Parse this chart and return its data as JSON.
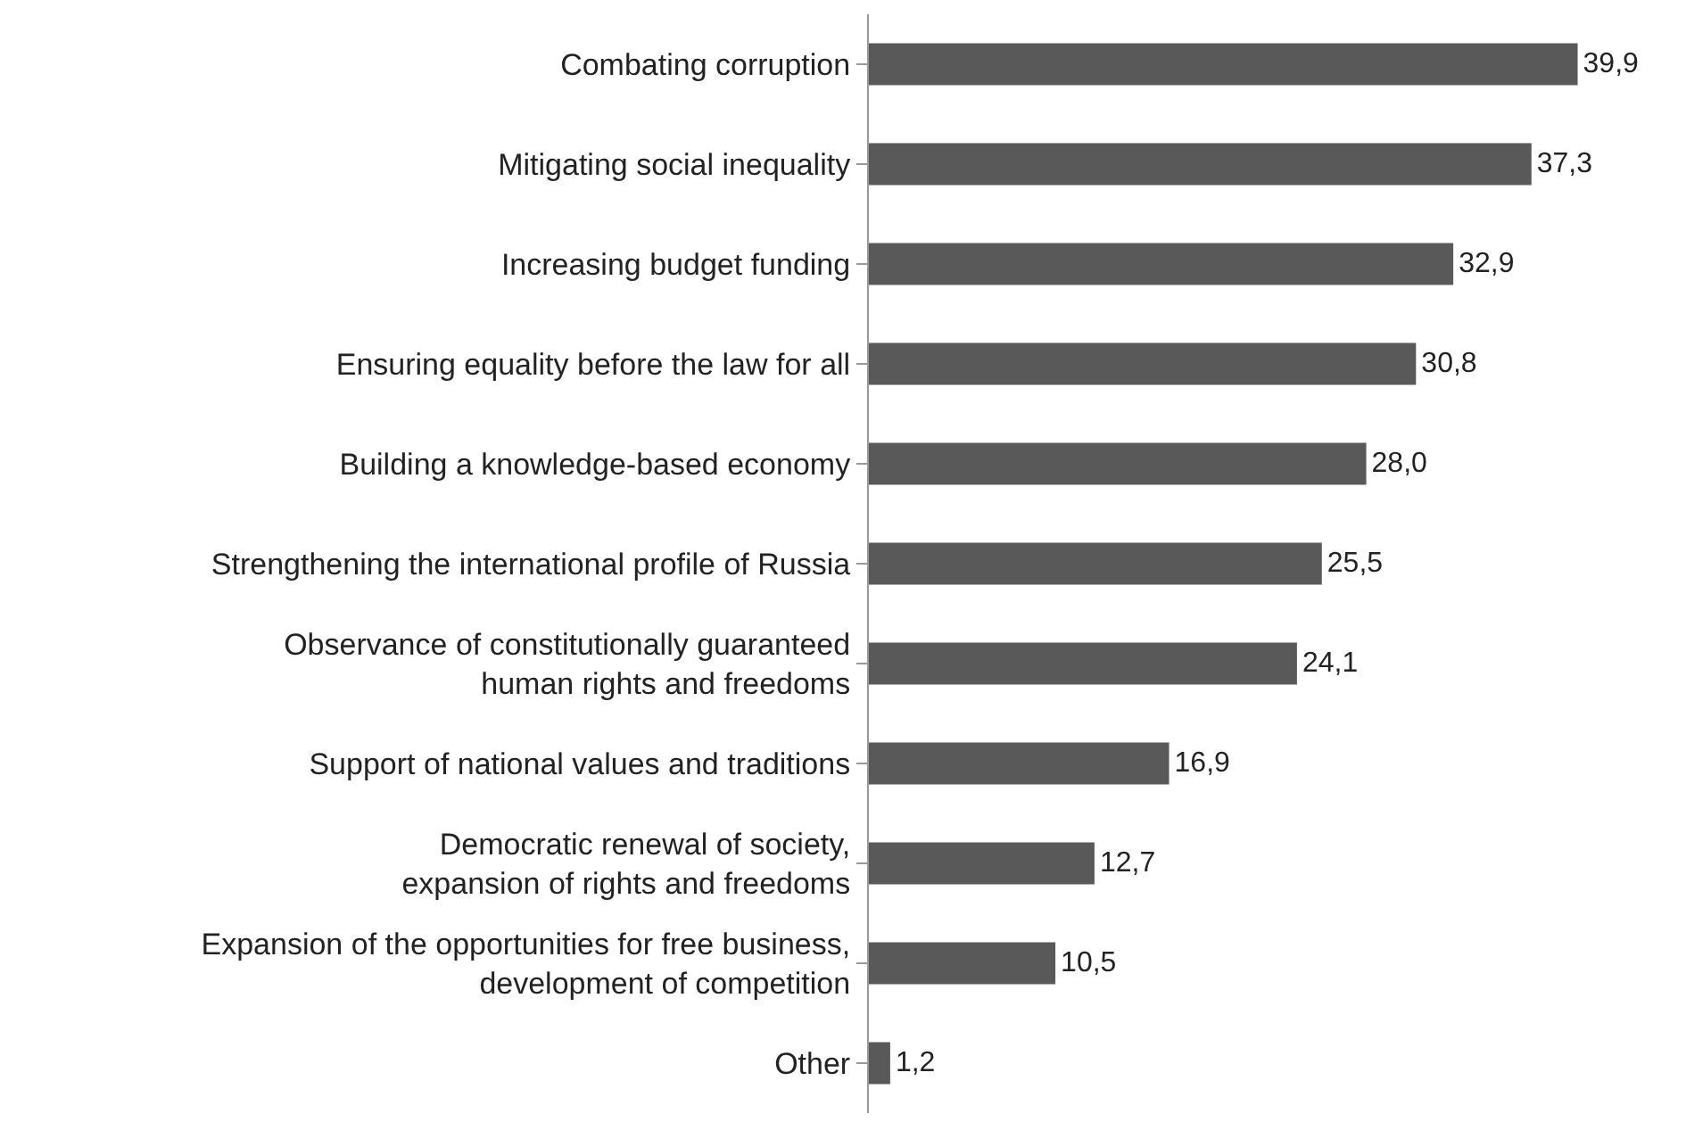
{
  "chart_data": {
    "type": "bar",
    "orientation": "horizontal",
    "categories": [
      "Combating corruption",
      "Mitigating social inequality",
      "Increasing budget funding",
      "Ensuring equality before the law for all",
      "Building a knowledge-based economy",
      "Strengthening the international profile of Russia",
      "Observance of constitutionally guaranteed\nhuman rights and freedoms",
      "Support of national values and traditions",
      "Democratic renewal of society,\nexpansion of rights and freedoms",
      "Expansion of the opportunities for free business,\ndevelopment of competition",
      "Other"
    ],
    "values": [
      39.9,
      37.3,
      32.9,
      30.8,
      28.0,
      25.5,
      24.1,
      16.9,
      12.7,
      10.5,
      1.2
    ],
    "value_labels": [
      "39,9",
      "37,3",
      "32,9",
      "30,8",
      "28,0",
      "25,5",
      "24,1",
      "16,9",
      "12,7",
      "10,5",
      "1,2"
    ],
    "color": "#595959",
    "xlim": [
      0,
      46
    ],
    "tick_labels": "y",
    "legend": false
  }
}
